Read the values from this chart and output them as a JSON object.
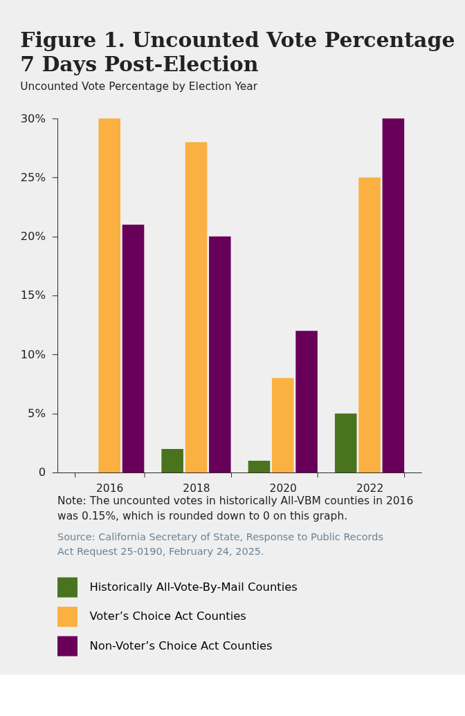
{
  "chart_data": {
    "type": "bar",
    "title": "Figure 1. Uncounted Vote Percentage 7 Days Post-Election",
    "subtitle": "Uncounted Vote Percentage by Election Year",
    "categories": [
      "2016",
      "2018",
      "2020",
      "2022"
    ],
    "series": [
      {
        "name": "Historically All-Vote-By-Mail Counties",
        "color": "#4a731f",
        "values": [
          0,
          2,
          1,
          5
        ]
      },
      {
        "name": "Voter’s Choice Act Counties",
        "color": "#fbb042",
        "values": [
          30,
          28,
          8,
          25
        ]
      },
      {
        "name": "Non-Voter’s Choice Act Counties",
        "color": "#68005a",
        "values": [
          21,
          20,
          12,
          30
        ]
      }
    ],
    "ylim": [
      0,
      30
    ],
    "yticks": [
      0,
      {
        "value": 5,
        "label": "5%"
      },
      {
        "value": 10,
        "label": "10%"
      },
      {
        "value": 15,
        "label": "15%"
      },
      {
        "value": 20,
        "label": "20%"
      },
      {
        "value": 25,
        "label": "25%"
      },
      {
        "value": 30,
        "label": "30%"
      }
    ],
    "grid": false,
    "legend": "bottom",
    "annotations": [
      "Note: The uncounted votes in historically All-VBM counties in 2016 was 0.15%, which is rounded down to 0 on this graph.",
      "Source: California Secretary of State, Response to Public Records Act Request 25-0190, February 24, 2025."
    ]
  }
}
